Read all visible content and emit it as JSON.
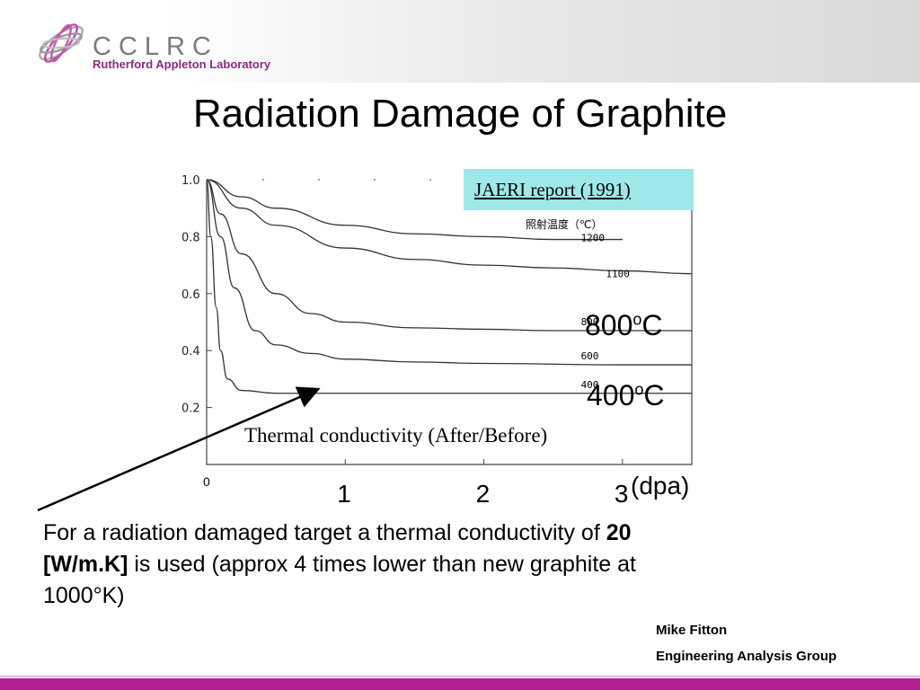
{
  "header": {
    "logo_name": "CCLRC",
    "logo_subtitle": "Rutherford Appleton Laboratory"
  },
  "slide": {
    "title": "Radiation Damage of Graphite",
    "source_label": "JAERI report (1991)",
    "legend_header": "照射温度（℃）",
    "note_800": "800",
    "note_400": "400",
    "note_unit": "C",
    "note_sup": "o",
    "body_lead": " For a radiation damaged target a thermal conductivity of ",
    "body_bold": "20 [W/m.K]",
    "body_tail": " is used (approx 4 times lower than new graphite at 1000°K)",
    "author": "Mike Fitton",
    "group": "Engineering Analysis Group"
  },
  "chart_data": {
    "type": "line",
    "title": "Thermal conductivity (After/Before)",
    "xlabel": "(dpa)",
    "ylabel": "",
    "xlim": [
      0,
      3.5
    ],
    "ylim": [
      0,
      1.0
    ],
    "x_ticks": [
      "0",
      "1",
      "2",
      "3"
    ],
    "y_ticks": [
      "0.2",
      "0.4",
      "0.6",
      "0.8",
      "1.0"
    ],
    "grid": false,
    "series": [
      {
        "name": "1200",
        "x": [
          0,
          0.25,
          0.5,
          1.0,
          1.5,
          2.0,
          2.5,
          3.0
        ],
        "y": [
          1.0,
          0.94,
          0.9,
          0.84,
          0.81,
          0.8,
          0.79,
          0.79
        ]
      },
      {
        "name": "1100",
        "x": [
          0,
          0.25,
          0.5,
          1.0,
          1.5,
          2.0,
          2.5,
          3.0,
          3.5
        ],
        "y": [
          1.0,
          0.9,
          0.84,
          0.76,
          0.72,
          0.7,
          0.69,
          0.68,
          0.67
        ]
      },
      {
        "name": "800",
        "x": [
          0,
          0.1,
          0.25,
          0.5,
          0.75,
          1.0,
          1.5,
          2.0,
          2.5,
          3.0,
          3.5
        ],
        "y": [
          1.0,
          0.88,
          0.74,
          0.6,
          0.53,
          0.5,
          0.48,
          0.475,
          0.47,
          0.47,
          0.47
        ]
      },
      {
        "name": "600",
        "x": [
          0,
          0.1,
          0.2,
          0.35,
          0.5,
          0.75,
          1.0,
          1.5,
          2.0,
          3.0,
          3.5
        ],
        "y": [
          1.0,
          0.8,
          0.62,
          0.47,
          0.42,
          0.39,
          0.37,
          0.36,
          0.355,
          0.35,
          0.35
        ]
      },
      {
        "name": "400",
        "x": [
          0,
          0.03,
          0.07,
          0.1,
          0.15,
          0.25,
          0.5,
          1.0,
          2.0,
          3.0,
          3.5
        ],
        "y": [
          1.0,
          0.8,
          0.55,
          0.4,
          0.3,
          0.26,
          0.25,
          0.25,
          0.25,
          0.25,
          0.25
        ]
      }
    ]
  }
}
